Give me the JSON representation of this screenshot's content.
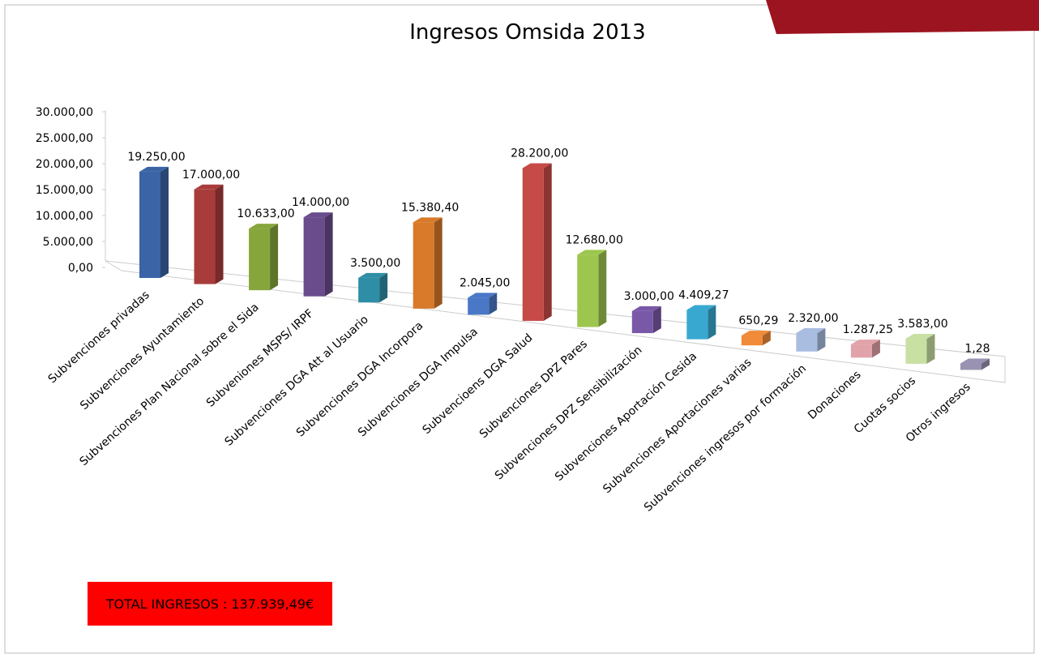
{
  "chart_data": {
    "type": "bar3d",
    "title": "Ingresos Omsida 2013",
    "categories": [
      "Subvenciones privadas",
      "Subvenciones Ayuntamiento",
      "Subvenciones Plan Nacional sobre el Sida",
      "Subveniones MSPS/ IRPF",
      "Subvenciones DGA Att al Usuario",
      "Subvenciones DGA Incorpora",
      "Subvenciones DGA Impulsa",
      "Subvencioens DGA Salud",
      "Subvenciones DPZ Pares",
      "Subvenciones DPZ Sensibilización",
      "Subvenciones Aportación Cesida",
      "Subvenciones Aportaciones varias",
      "Subvenciones ingresos por formación",
      "Donaciones",
      "Cuotas socios",
      "Otros ingresos"
    ],
    "values": [
      19250,
      17000,
      10633,
      14000,
      3500,
      15380.4,
      2045,
      28200,
      12680,
      3000,
      4409.27,
      650.29,
      2320,
      1287.25,
      3583,
      1.28
    ],
    "value_labels": [
      "19.250,00",
      "17.000,00",
      "10.633,00",
      "14.000,00",
      "3.500,00",
      "15.380,40",
      "2.045,00",
      "28.200,00",
      "12.680,00",
      "3.000,00",
      "4.409,27",
      "650,29",
      "2.320,00",
      "1.287,25",
      "3.583,00",
      "1,28"
    ],
    "colors": [
      "#3b64a6",
      "#a83c3a",
      "#86a63c",
      "#6a4b8c",
      "#2e8ea6",
      "#d87a2a",
      "#4a78c6",
      "#c64a48",
      "#9cc64e",
      "#7a58a8",
      "#38a8d0",
      "#f08a38",
      "#a8bde0",
      "#e2a2aa",
      "#c8e0a2",
      "#9a92b2"
    ],
    "ylim": [
      0,
      30000
    ],
    "yticks": [
      {
        "value": 0,
        "label": "0,00"
      },
      {
        "value": 5000,
        "label": "5.000,00"
      },
      {
        "value": 10000,
        "label": "10.000,00"
      },
      {
        "value": 15000,
        "label": "15.000,00"
      },
      {
        "value": 20000,
        "label": "20.000,00"
      },
      {
        "value": 25000,
        "label": "25.000,00"
      },
      {
        "value": 30000,
        "label": "30.000,00"
      }
    ],
    "total_label": "TOTAL INGRESOS : 137.939,49€"
  }
}
